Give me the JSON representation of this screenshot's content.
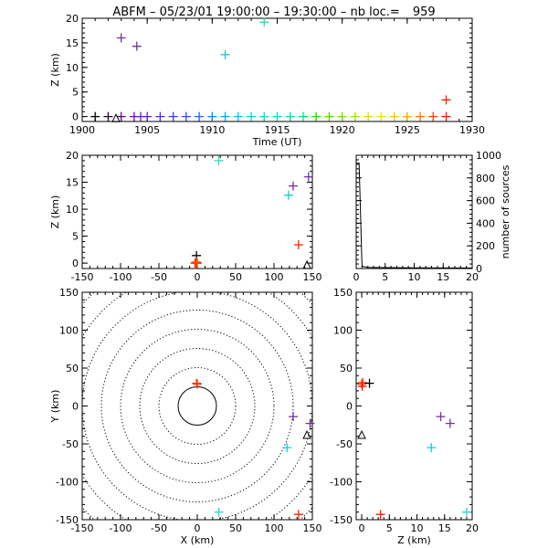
{
  "title": {
    "station": "ABFM",
    "date": "05/23/01",
    "time_range": "19:00:00 – 19:30:00",
    "count_label": "nb loc.=",
    "count": "959"
  },
  "chart_data": [
    {
      "id": "time_altitude",
      "type": "scatter",
      "xlabel": "Time (UT)",
      "ylabel": "Z (km)",
      "xlim": [
        1900,
        1930
      ],
      "ylim": [
        -1,
        20
      ],
      "xticks": [
        1900,
        1905,
        1910,
        1915,
        1920,
        1925,
        1930
      ],
      "yticks": [
        0,
        5,
        10,
        15,
        20
      ],
      "marker": "plus",
      "color_by": "time (rainbow purple-to-red)",
      "points": [
        {
          "x": 1901.0,
          "y": 0.0,
          "c": "#000000"
        },
        {
          "x": 1902.0,
          "y": 0.0,
          "c": "#200020"
        },
        {
          "x": 1903.0,
          "y": 16.0,
          "c": "#7030a0"
        },
        {
          "x": 1903.0,
          "y": 0.0,
          "c": "#6a0080"
        },
        {
          "x": 1904.2,
          "y": 14.3,
          "c": "#7030a0"
        },
        {
          "x": 1904.0,
          "y": 0.0,
          "c": "#7a00b0"
        },
        {
          "x": 1904.5,
          "y": 0.0,
          "c": "#6020c0"
        },
        {
          "x": 1905.0,
          "y": 0.0,
          "c": "#5a20c8"
        },
        {
          "x": 1906.0,
          "y": 0.0,
          "c": "#4b30d8"
        },
        {
          "x": 1907.0,
          "y": 0.0,
          "c": "#3c40e0"
        },
        {
          "x": 1908.0,
          "y": 0.0,
          "c": "#2850f0"
        },
        {
          "x": 1909.0,
          "y": 0.0,
          "c": "#1a66ff"
        },
        {
          "x": 1910.0,
          "y": 0.0,
          "c": "#0088ff"
        },
        {
          "x": 1911.0,
          "y": 0.0,
          "c": "#00a8ff"
        },
        {
          "x": 1911.0,
          "y": 12.6,
          "c": "#20c8d0"
        },
        {
          "x": 1912.0,
          "y": 0.0,
          "c": "#00c0f0"
        },
        {
          "x": 1913.0,
          "y": 0.0,
          "c": "#00d0e0"
        },
        {
          "x": 1914.0,
          "y": 19.2,
          "c": "#30d8c0"
        },
        {
          "x": 1914.0,
          "y": 0.0,
          "c": "#00d8d0"
        },
        {
          "x": 1915.0,
          "y": 0.0,
          "c": "#00e0c0"
        },
        {
          "x": 1916.0,
          "y": 0.0,
          "c": "#00e0a0"
        },
        {
          "x": 1917.0,
          "y": 0.0,
          "c": "#00e080"
        },
        {
          "x": 1918.0,
          "y": 0.0,
          "c": "#20e000"
        },
        {
          "x": 1919.0,
          "y": 0.0,
          "c": "#40e000"
        },
        {
          "x": 1920.0,
          "y": 0.0,
          "c": "#70e000"
        },
        {
          "x": 1921.0,
          "y": 0.0,
          "c": "#a0e000"
        },
        {
          "x": 1922.0,
          "y": 0.0,
          "c": "#d0e000"
        },
        {
          "x": 1923.0,
          "y": 0.0,
          "c": "#f0e000"
        },
        {
          "x": 1924.0,
          "y": 0.0,
          "c": "#ffc000"
        },
        {
          "x": 1925.0,
          "y": 0.0,
          "c": "#ffa000"
        },
        {
          "x": 1926.0,
          "y": 0.0,
          "c": "#ff7000"
        },
        {
          "x": 1927.0,
          "y": 0.0,
          "c": "#ff4000"
        },
        {
          "x": 1928.0,
          "y": 3.4,
          "c": "#ff2000"
        },
        {
          "x": 1928.0,
          "y": 0.0,
          "c": "#ff1000"
        }
      ],
      "markers": [
        {
          "type": "triangle",
          "x": 1902.6,
          "y": -0.3
        }
      ]
    },
    {
      "id": "x_altitude",
      "type": "scatter",
      "xlabel": "",
      "ylabel": "Z (km)",
      "xlim": [
        -150,
        150
      ],
      "ylim": [
        -1,
        20
      ],
      "xticks": [
        -150,
        -100,
        -50,
        0,
        50,
        100,
        150
      ],
      "yticks": [
        0,
        5,
        10,
        15,
        20
      ],
      "marker": "plus",
      "points": [
        {
          "x": 28,
          "y": 19.0,
          "c": "#30d8c0"
        },
        {
          "x": 125,
          "y": 14.3,
          "c": "#7030a0"
        },
        {
          "x": 145,
          "y": 16.0,
          "c": "#7030a0"
        },
        {
          "x": 119,
          "y": 12.6,
          "c": "#20c8d0"
        },
        {
          "x": 132,
          "y": 3.4,
          "c": "#ff2000"
        },
        {
          "x": -1,
          "y": 1.4,
          "c": "#000000"
        },
        {
          "x": -1,
          "y": 0.0,
          "c": "#ff2000"
        },
        {
          "x": -3,
          "y": 0.0,
          "c": "#ff4000"
        },
        {
          "x": -2,
          "y": 0.1,
          "c": "#ff1000"
        },
        {
          "x": 0,
          "y": 0.0,
          "c": "#ff3000"
        },
        {
          "x": -1,
          "y": 0.2,
          "c": "#ff5000"
        }
      ],
      "markers": [
        {
          "type": "triangle",
          "x": 143,
          "y": -0.3
        }
      ]
    },
    {
      "id": "altitude_histogram",
      "type": "line",
      "xlabel": "",
      "ylabel": "number of sources",
      "xlim": [
        0,
        20
      ],
      "ylim": [
        0,
        1000
      ],
      "xticks": [
        0,
        5,
        10,
        15,
        20
      ],
      "yticks": [
        0,
        200,
        400,
        600,
        800,
        1000
      ],
      "x": [
        0,
        0.5,
        1,
        2,
        5,
        10,
        15,
        20
      ],
      "y": [
        930,
        930,
        20,
        10,
        8,
        6,
        5,
        5
      ]
    },
    {
      "id": "plan_view",
      "type": "scatter",
      "xlabel": "X (km)",
      "ylabel": "Y (km)",
      "xlim": [
        -150,
        150
      ],
      "ylim": [
        -150,
        150
      ],
      "xticks": [
        -150,
        -100,
        -50,
        0,
        50,
        100,
        150
      ],
      "yticks": [
        -150,
        -100,
        -50,
        0,
        50,
        100,
        150
      ],
      "range_rings_km": [
        25,
        50,
        75,
        100,
        125,
        150,
        175,
        200
      ],
      "marker": "plus",
      "points": [
        {
          "x": 0,
          "y": 29,
          "c": "#ff2000"
        },
        {
          "x": -1,
          "y": 30,
          "c": "#ff4000"
        },
        {
          "x": 125,
          "y": -14,
          "c": "#7030a0"
        },
        {
          "x": 147,
          "y": -23,
          "c": "#7030a0"
        },
        {
          "x": 117,
          "y": -55,
          "c": "#20c8d0"
        },
        {
          "x": 28,
          "y": -140,
          "c": "#30d8c0"
        },
        {
          "x": 132,
          "y": -143,
          "c": "#ff2000"
        }
      ],
      "markers": [
        {
          "type": "triangle",
          "x": 143,
          "y": -38
        }
      ]
    },
    {
      "id": "altitude_y",
      "type": "scatter",
      "xlabel": "Z (km)",
      "ylabel": "",
      "xlim": [
        -1,
        20
      ],
      "ylim": [
        -150,
        150
      ],
      "xticks": [
        0,
        5,
        10,
        15,
        20
      ],
      "yticks": [
        -150,
        -100,
        -50,
        0,
        50,
        100,
        150
      ],
      "marker": "plus",
      "points": [
        {
          "x": 0.0,
          "y": 29,
          "c": "#ff2000"
        },
        {
          "x": 0.2,
          "y": 31,
          "c": "#ff4000"
        },
        {
          "x": 0.1,
          "y": 26,
          "c": "#ff1000"
        },
        {
          "x": 1.4,
          "y": 30,
          "c": "#000000"
        },
        {
          "x": 14.3,
          "y": -14,
          "c": "#7030a0"
        },
        {
          "x": 16.0,
          "y": -23,
          "c": "#7030a0"
        },
        {
          "x": 12.6,
          "y": -55,
          "c": "#20c8d0"
        },
        {
          "x": 19.0,
          "y": -140,
          "c": "#30d8c0"
        },
        {
          "x": 3.4,
          "y": -143,
          "c": "#ff2000"
        }
      ],
      "markers": [
        {
          "type": "triangle",
          "x": 0,
          "y": -38
        }
      ]
    }
  ]
}
